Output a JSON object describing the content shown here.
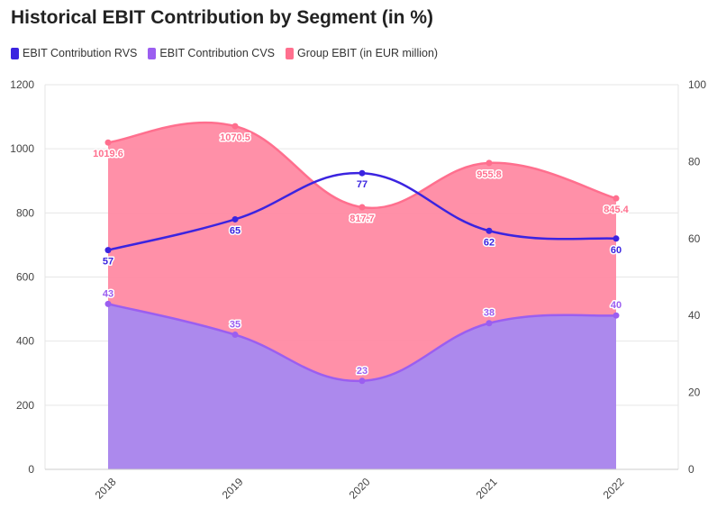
{
  "title": "Historical EBIT Contribution by Segment (in %)",
  "colors": {
    "rvs": "#3b24e0",
    "cvs": "#9b5ef0",
    "group": "#ff6f8e",
    "group_fill": "#ff8aa3",
    "cvs_fill": "#a889f0"
  },
  "legend": [
    {
      "label": "EBIT Contribution RVS",
      "color": "#3b24e0"
    },
    {
      "label": "EBIT Contribution CVS",
      "color": "#9b5ef0"
    },
    {
      "label": "Group EBIT (in EUR million)",
      "color": "#ff6f8e"
    }
  ],
  "chart_data": {
    "type": "area",
    "title": "Historical EBIT Contribution by Segment (in %)",
    "categories": [
      "2018",
      "2019",
      "2020",
      "2021",
      "2022"
    ],
    "y_left": {
      "min": 0,
      "max": 1200,
      "ticks": [
        0,
        200,
        400,
        600,
        800,
        1000,
        1200
      ]
    },
    "y_right": {
      "min": 0,
      "max": 100,
      "ticks": [
        0,
        20,
        40,
        60,
        80,
        100
      ]
    },
    "grid": true,
    "legend_position": "top-left",
    "series": [
      {
        "name": "EBIT Contribution RVS",
        "type": "line",
        "axis": "right",
        "values": [
          57,
          65,
          77,
          62,
          60
        ],
        "labels": [
          "57",
          "65",
          "77",
          "62",
          "60"
        ]
      },
      {
        "name": "EBIT Contribution CVS",
        "type": "area",
        "axis": "right",
        "values": [
          43,
          35,
          23,
          38,
          40
        ],
        "labels": [
          "43",
          "35",
          "23",
          "38",
          "40"
        ]
      },
      {
        "name": "Group EBIT (in EUR million)",
        "type": "area",
        "axis": "left",
        "values": [
          1019.6,
          1070.5,
          817.7,
          955.8,
          845.4
        ],
        "labels": [
          "1019.6",
          "1070.5",
          "817.7",
          "955.8",
          "845.4"
        ]
      }
    ]
  }
}
